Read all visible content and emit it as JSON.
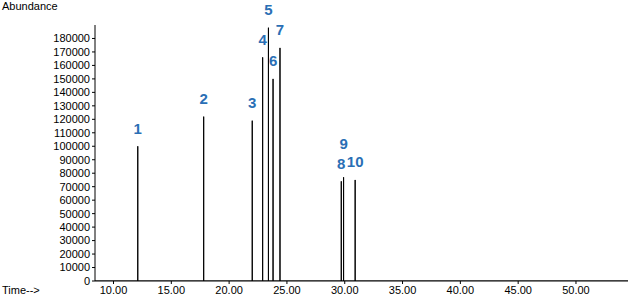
{
  "chart_data": {
    "type": "line",
    "x_label": "Time-->",
    "y_label": "Abundance",
    "x": [
      12.1,
      17.8,
      22.0,
      22.9,
      23.4,
      23.8,
      24.4,
      29.7,
      29.9,
      30.9
    ],
    "values": [
      100000,
      122000,
      119000,
      166000,
      188000,
      150000,
      173000,
      74000,
      77000,
      75000
    ],
    "labels": [
      "1",
      "2",
      "3",
      "4",
      "5",
      "6",
      "7",
      "8",
      "9",
      "10"
    ],
    "color": "#000000",
    "label_color": "#2a6fb5",
    "xlim": [
      8.4,
      54.5
    ],
    "xticks": [
      {
        "value": 10,
        "label": "10.00"
      },
      {
        "value": 15,
        "label": "15.00"
      },
      {
        "value": 20,
        "label": "20.00"
      },
      {
        "value": 25,
        "label": "25.00"
      },
      {
        "value": 30,
        "label": "30.00"
      },
      {
        "value": 35,
        "label": "35.00"
      },
      {
        "value": 40,
        "label": "40.00"
      },
      {
        "value": 45,
        "label": "45.00"
      },
      {
        "value": 50,
        "label": "50.00"
      }
    ],
    "ylim": [
      0,
      190000
    ],
    "yticks": [
      0,
      10000,
      20000,
      30000,
      40000,
      50000,
      60000,
      70000,
      80000,
      90000,
      100000,
      110000,
      120000,
      130000,
      140000,
      150000,
      160000,
      170000,
      180000
    ],
    "grid": false
  }
}
